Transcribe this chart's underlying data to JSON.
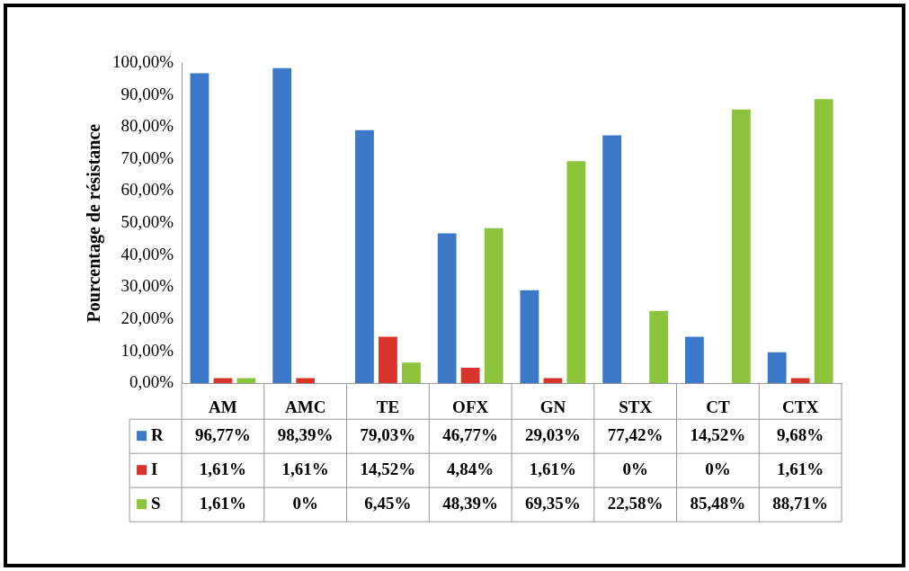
{
  "chart_data": {
    "type": "bar",
    "ylabel": "Pourcentage de résistance",
    "categories": [
      "AM",
      "AMC",
      "TE",
      "OFX",
      "GN",
      "STX",
      "CT",
      "CTX"
    ],
    "series": [
      {
        "name": "R",
        "color": "#3b78c8",
        "values": [
          96.77,
          98.39,
          79.03,
          46.77,
          29.03,
          77.42,
          14.52,
          9.68
        ],
        "value_labels": [
          "96,77%",
          "98,39%",
          "79,03%",
          "46,77%",
          "29,03%",
          "77,42%",
          "14,52%",
          "9,68%"
        ]
      },
      {
        "name": "I",
        "color": "#d9342b",
        "values": [
          1.61,
          1.61,
          14.52,
          4.84,
          1.61,
          0,
          0,
          1.61
        ],
        "value_labels": [
          "1,61%",
          "1,61%",
          "14,52%",
          "4,84%",
          "1,61%",
          "0%",
          "0%",
          "1,61%"
        ]
      },
      {
        "name": "S",
        "color": "#8cc43c",
        "values": [
          1.61,
          0,
          6.45,
          48.39,
          69.35,
          22.58,
          85.48,
          88.71
        ],
        "value_labels": [
          "1,61%",
          "0%",
          "6,45%",
          "48,39%",
          "69,35%",
          "22,58%",
          "85,48%",
          "88,71%"
        ]
      }
    ],
    "ylim": [
      0,
      100
    ],
    "yticks": [
      {
        "value": 0,
        "label": "0,00%"
      },
      {
        "value": 10,
        "label": "10,00%"
      },
      {
        "value": 20,
        "label": "20,00%"
      },
      {
        "value": 30,
        "label": "30,00%"
      },
      {
        "value": 40,
        "label": "40,00%"
      },
      {
        "value": 50,
        "label": "50,00%"
      },
      {
        "value": 60,
        "label": "60,00%"
      },
      {
        "value": 70,
        "label": "70,00%"
      },
      {
        "value": 80,
        "label": "80,00%"
      },
      {
        "value": 90,
        "label": "90,00%"
      },
      {
        "value": 100,
        "label": "100,00%"
      }
    ],
    "legend": "bottom"
  }
}
